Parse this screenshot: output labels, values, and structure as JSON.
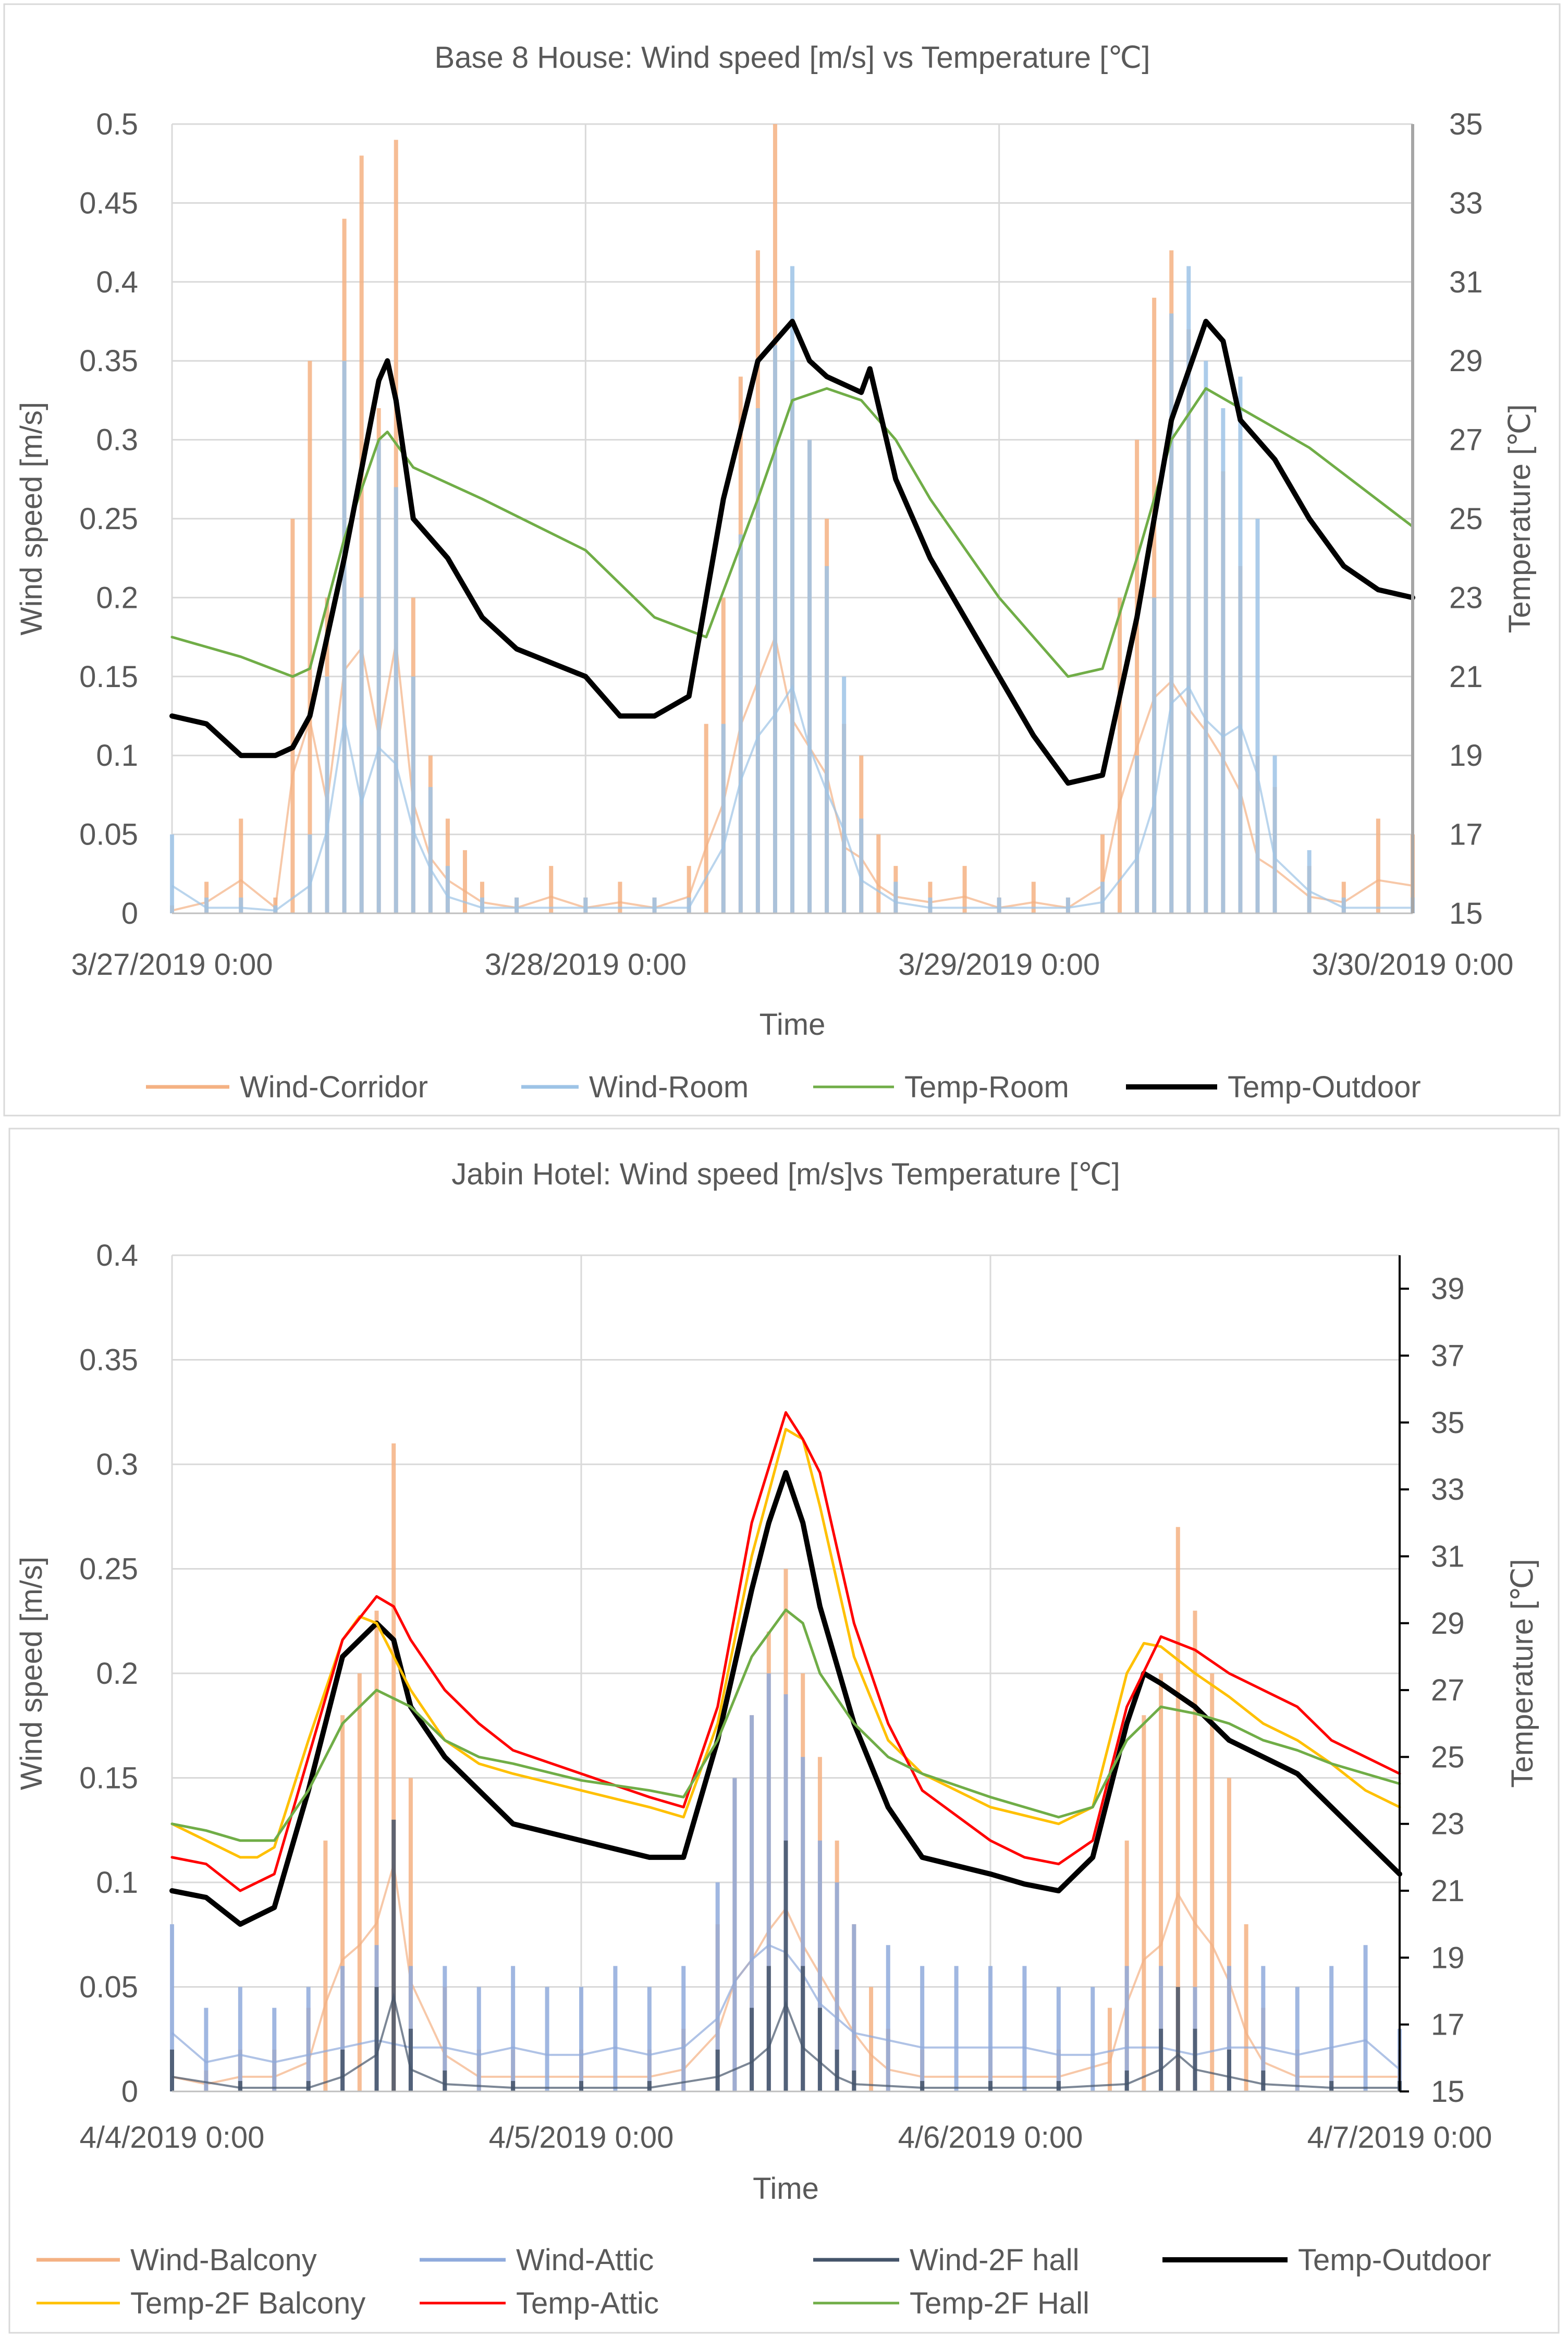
{
  "chart_data": [
    {
      "type": "line",
      "title": "Base 8 House: Wind speed [m/s] vs Temperature [℃]",
      "xlabel": "Time",
      "ylabel": "Wind speed [m/s]",
      "y2label": "Temperature [℃]",
      "xlim": [
        0,
        72
      ],
      "ylim": [
        0,
        0.5
      ],
      "y2lim": [
        15,
        35
      ],
      "xticks": [
        0,
        24,
        48,
        72
      ],
      "xtick_labels": [
        "3/27/2019 0:00",
        "3/28/2019 0:00",
        "3/29/2019 0:00",
        "3/30/2019 0:00"
      ],
      "yticks": [
        0,
        0.05,
        0.1,
        0.15,
        0.2,
        0.25,
        0.3,
        0.35,
        0.4,
        0.45,
        0.5
      ],
      "ytick_labels": [
        "0",
        "0.05",
        "0.1",
        "0.15",
        "0.2",
        "0.25",
        "0.3",
        "0.35",
        "0.4",
        "0.45",
        "0.5"
      ],
      "y2ticks": [
        15,
        17,
        19,
        21,
        23,
        25,
        27,
        29,
        31,
        33,
        35
      ],
      "y2tick_labels": [
        "15",
        "17",
        "19",
        "21",
        "23",
        "25",
        "27",
        "29",
        "31",
        "33",
        "35"
      ],
      "grid": true,
      "legend_position": "bottom",
      "series": [
        {
          "name": "Wind-Corridor",
          "axis": "left",
          "kind": "spikes",
          "color": "#f4b183",
          "width": 4,
          "x": [
            0,
            2,
            4,
            6,
            7,
            8,
            9,
            10,
            11,
            12,
            13,
            14,
            15,
            16,
            17,
            18,
            20,
            22,
            24,
            26,
            28,
            30,
            31,
            32,
            33,
            34,
            35,
            36,
            37,
            38,
            39,
            40,
            41,
            42,
            44,
            46,
            48,
            50,
            52,
            54,
            55,
            56,
            57,
            58,
            59,
            60,
            61,
            62,
            63,
            64,
            66,
            68,
            70,
            72
          ],
          "y": [
            0.005,
            0.02,
            0.06,
            0.01,
            0.25,
            0.35,
            0.2,
            0.44,
            0.48,
            0.32,
            0.49,
            0.2,
            0.1,
            0.06,
            0.04,
            0.02,
            0.01,
            0.03,
            0.01,
            0.02,
            0.01,
            0.03,
            0.12,
            0.2,
            0.34,
            0.42,
            0.5,
            0.35,
            0.3,
            0.25,
            0.12,
            0.1,
            0.05,
            0.03,
            0.02,
            0.03,
            0.01,
            0.02,
            0.01,
            0.05,
            0.2,
            0.3,
            0.39,
            0.42,
            0.37,
            0.33,
            0.28,
            0.22,
            0.1,
            0.08,
            0.03,
            0.02,
            0.06,
            0.05
          ]
        },
        {
          "name": "Wind-Room",
          "axis": "left",
          "kind": "spikes",
          "color": "#9dc3e6",
          "width": 4,
          "x": [
            0,
            2,
            4,
            6,
            8,
            9,
            10,
            11,
            12,
            13,
            14,
            15,
            16,
            18,
            20,
            24,
            28,
            30,
            32,
            33,
            34,
            35,
            36,
            37,
            38,
            39,
            40,
            42,
            44,
            48,
            52,
            54,
            56,
            57,
            58,
            59,
            60,
            61,
            62,
            63,
            64,
            66,
            68,
            72
          ],
          "y": [
            0.05,
            0.01,
            0.01,
            0.005,
            0.05,
            0.15,
            0.35,
            0.2,
            0.3,
            0.27,
            0.15,
            0.08,
            0.03,
            0.01,
            0.01,
            0.01,
            0.01,
            0.01,
            0.12,
            0.24,
            0.32,
            0.36,
            0.41,
            0.3,
            0.22,
            0.15,
            0.06,
            0.02,
            0.01,
            0.01,
            0.01,
            0.02,
            0.1,
            0.2,
            0.38,
            0.41,
            0.35,
            0.32,
            0.34,
            0.25,
            0.1,
            0.04,
            0.01,
            0.01
          ]
        },
        {
          "name": "Temp-Room",
          "axis": "right",
          "kind": "line",
          "color": "#70ad47",
          "width": 5,
          "x": [
            0,
            4,
            7,
            8,
            10,
            12,
            12.5,
            14,
            18,
            24,
            28,
            31,
            34,
            36,
            38,
            40,
            42,
            44,
            48,
            52,
            54,
            56,
            58,
            60,
            62,
            66,
            72
          ],
          "y": [
            22.0,
            21.5,
            21.0,
            21.2,
            24.5,
            27.0,
            27.2,
            26.3,
            25.5,
            24.2,
            22.5,
            22.0,
            25.5,
            28.0,
            28.3,
            28.0,
            27.0,
            25.5,
            23.0,
            21.0,
            21.2,
            24.0,
            27.0,
            28.3,
            27.8,
            26.8,
            24.8
          ]
        },
        {
          "name": "Temp-Outdoor",
          "axis": "right",
          "kind": "line",
          "color": "#000000",
          "width": 10,
          "x": [
            0,
            2,
            4,
            6,
            7,
            8,
            10,
            12,
            12.5,
            13,
            14,
            16,
            18,
            20,
            24,
            26,
            28,
            30,
            32,
            34,
            36,
            37,
            38,
            40,
            40.5,
            42,
            44,
            48,
            50,
            52,
            54,
            56,
            58,
            60,
            61,
            62,
            64,
            66,
            68,
            70,
            72
          ],
          "y": [
            20.0,
            19.8,
            19.0,
            19.0,
            19.2,
            20.0,
            24.0,
            28.5,
            29.0,
            28.0,
            25.0,
            24.0,
            22.5,
            21.7,
            21.0,
            20.0,
            20.0,
            20.5,
            25.5,
            29.0,
            30.0,
            29.0,
            28.6,
            28.2,
            28.8,
            26.0,
            24.0,
            21.0,
            19.5,
            18.3,
            18.5,
            22.5,
            27.5,
            30.0,
            29.5,
            27.5,
            26.5,
            25.0,
            23.8,
            23.2,
            23.0
          ]
        }
      ]
    },
    {
      "type": "line",
      "title": "Jabin Hotel: Wind speed [m/s]vs Temperature [℃]",
      "xlabel": "Time",
      "ylabel": "Wind speed [m/s]",
      "y2label": "Temperature [℃]",
      "xlim": [
        0,
        72
      ],
      "ylim": [
        0,
        0.4
      ],
      "y2lim": [
        15,
        40
      ],
      "xticks": [
        0,
        24,
        48,
        72
      ],
      "xtick_labels": [
        "4/4/2019 0:00",
        "4/5/2019 0:00",
        "4/6/2019 0:00",
        "4/7/2019 0:00"
      ],
      "yticks": [
        0,
        0.05,
        0.1,
        0.15,
        0.2,
        0.25,
        0.3,
        0.35,
        0.4
      ],
      "ytick_labels": [
        "0",
        "0.05",
        "0.1",
        "0.15",
        "0.2",
        "0.25",
        "0.3",
        "0.35",
        "0.4"
      ],
      "y2ticks": [
        15,
        17,
        19,
        21,
        23,
        25,
        27,
        29,
        31,
        33,
        35,
        37,
        39
      ],
      "y2tick_labels": [
        "15",
        "17",
        "19",
        "21",
        "23",
        "25",
        "27",
        "29",
        "31",
        "33",
        "35",
        "37",
        "39"
      ],
      "grid": true,
      "legend_position": "bottom",
      "series": [
        {
          "name": "Wind-Balcony",
          "axis": "left",
          "kind": "spikes",
          "color": "#f4b183",
          "width": 4,
          "x": [
            0,
            2,
            4,
            6,
            8,
            9,
            10,
            11,
            12,
            13,
            14,
            16,
            18,
            20,
            24,
            28,
            30,
            32,
            33,
            34,
            35,
            36,
            37,
            38,
            39,
            40,
            41,
            42,
            44,
            48,
            52,
            55,
            56,
            57,
            58,
            59,
            60,
            61,
            62,
            63,
            64,
            66,
            68,
            72
          ],
          "y": [
            0.02,
            0.01,
            0.02,
            0.02,
            0.04,
            0.12,
            0.18,
            0.2,
            0.23,
            0.31,
            0.15,
            0.05,
            0.02,
            0.02,
            0.02,
            0.02,
            0.03,
            0.08,
            0.15,
            0.18,
            0.22,
            0.25,
            0.2,
            0.16,
            0.12,
            0.08,
            0.05,
            0.03,
            0.02,
            0.02,
            0.02,
            0.04,
            0.12,
            0.18,
            0.2,
            0.27,
            0.23,
            0.2,
            0.15,
            0.08,
            0.04,
            0.02,
            0.02,
            0.02
          ]
        },
        {
          "name": "Wind-Attic",
          "axis": "left",
          "kind": "spikes",
          "color": "#8faadc",
          "width": 4,
          "x": [
            0,
            2,
            4,
            6,
            8,
            10,
            12,
            14,
            16,
            18,
            20,
            22,
            24,
            26,
            28,
            30,
            32,
            33,
            34,
            35,
            36,
            37,
            38,
            39,
            40,
            42,
            44,
            46,
            48,
            50,
            52,
            54,
            56,
            58,
            60,
            62,
            64,
            66,
            68,
            70,
            72
          ],
          "y": [
            0.08,
            0.04,
            0.05,
            0.04,
            0.05,
            0.06,
            0.07,
            0.06,
            0.06,
            0.05,
            0.06,
            0.05,
            0.05,
            0.06,
            0.05,
            0.06,
            0.1,
            0.15,
            0.18,
            0.2,
            0.19,
            0.16,
            0.12,
            0.1,
            0.08,
            0.07,
            0.06,
            0.06,
            0.06,
            0.06,
            0.05,
            0.05,
            0.06,
            0.06,
            0.05,
            0.06,
            0.06,
            0.05,
            0.06,
            0.07,
            0.03
          ]
        },
        {
          "name": "Wind-2F hall",
          "axis": "left",
          "kind": "spikes",
          "color": "#44546a",
          "width": 4,
          "x": [
            0,
            4,
            8,
            10,
            12,
            13,
            14,
            16,
            20,
            24,
            28,
            32,
            34,
            35,
            36,
            37,
            38,
            39,
            40,
            44,
            48,
            52,
            56,
            58,
            59,
            60,
            62,
            64,
            68,
            72
          ],
          "y": [
            0.02,
            0.005,
            0.005,
            0.02,
            0.05,
            0.13,
            0.03,
            0.01,
            0.005,
            0.005,
            0.005,
            0.02,
            0.04,
            0.06,
            0.12,
            0.06,
            0.04,
            0.02,
            0.01,
            0.005,
            0.005,
            0.005,
            0.01,
            0.03,
            0.05,
            0.03,
            0.02,
            0.01,
            0.005,
            0.005
          ]
        },
        {
          "name": "Temp-Outdoor",
          "axis": "right",
          "kind": "line",
          "color": "#000000",
          "width": 10,
          "x": [
            0,
            2,
            4,
            6,
            8,
            10,
            12,
            13,
            14,
            16,
            18,
            20,
            24,
            28,
            30,
            32,
            34,
            35,
            36,
            37,
            38,
            40,
            42,
            44,
            48,
            50,
            52,
            54,
            56,
            57,
            58,
            60,
            62,
            64,
            66,
            68,
            70,
            72
          ],
          "y": [
            21.0,
            20.8,
            20.0,
            20.5,
            24.0,
            28.0,
            29.0,
            28.5,
            26.5,
            25.0,
            24.0,
            23.0,
            22.5,
            22.0,
            22.0,
            25.5,
            30.0,
            32.0,
            33.5,
            32.0,
            29.5,
            26.0,
            23.5,
            22.0,
            21.5,
            21.2,
            21.0,
            22.0,
            26.0,
            27.5,
            27.2,
            26.5,
            25.5,
            25.0,
            24.5,
            23.5,
            22.5,
            21.5
          ]
        },
        {
          "name": "Temp-2F Balcony",
          "axis": "right",
          "kind": "line",
          "color": "#ffc000",
          "width": 5,
          "x": [
            0,
            2,
            4,
            5,
            6,
            8,
            10,
            11,
            12,
            13,
            14,
            16,
            18,
            20,
            24,
            28,
            30,
            32,
            34,
            36,
            37,
            38,
            40,
            42,
            44,
            48,
            52,
            54,
            56,
            57,
            58,
            60,
            62,
            64,
            66,
            68,
            70,
            72
          ],
          "y": [
            23.0,
            22.5,
            22.0,
            22.0,
            22.3,
            25.5,
            28.5,
            29.2,
            29.0,
            28.0,
            27.0,
            25.5,
            24.8,
            24.5,
            24.0,
            23.5,
            23.2,
            26.0,
            31.0,
            34.8,
            34.5,
            32.5,
            28.0,
            25.5,
            24.5,
            23.5,
            23.0,
            23.5,
            27.5,
            28.4,
            28.3,
            27.5,
            26.8,
            26.0,
            25.5,
            24.8,
            24.0,
            23.5
          ]
        },
        {
          "name": "Temp-Attic",
          "axis": "right",
          "kind": "line",
          "color": "#ff0000",
          "width": 5,
          "x": [
            0,
            2,
            4,
            6,
            8,
            10,
            12,
            13,
            14,
            16,
            18,
            20,
            24,
            28,
            30,
            32,
            34,
            36,
            37,
            38,
            40,
            42,
            44,
            48,
            50,
            52,
            54,
            56,
            58,
            60,
            62,
            64,
            66,
            68,
            70,
            72
          ],
          "y": [
            22.0,
            21.8,
            21.0,
            21.5,
            25.0,
            28.5,
            29.8,
            29.5,
            28.5,
            27.0,
            26.0,
            25.2,
            24.5,
            23.8,
            23.5,
            26.5,
            32.0,
            35.3,
            34.5,
            33.5,
            29.0,
            26.0,
            24.0,
            22.5,
            22.0,
            21.8,
            22.5,
            26.5,
            28.6,
            28.2,
            27.5,
            27.0,
            26.5,
            25.5,
            25.0,
            24.5
          ]
        },
        {
          "name": "Temp-2F Hall",
          "axis": "right",
          "kind": "line",
          "color": "#70ad47",
          "width": 5,
          "x": [
            0,
            2,
            4,
            6,
            8,
            10,
            12,
            14,
            16,
            18,
            20,
            24,
            28,
            30,
            32,
            34,
            36,
            37,
            38,
            40,
            42,
            44,
            48,
            52,
            54,
            56,
            58,
            60,
            62,
            64,
            66,
            68,
            70,
            72
          ],
          "y": [
            23.0,
            22.8,
            22.5,
            22.5,
            24.0,
            26.0,
            27.0,
            26.5,
            25.5,
            25.0,
            24.8,
            24.3,
            24.0,
            23.8,
            25.5,
            28.0,
            29.4,
            29.0,
            27.5,
            26.0,
            25.0,
            24.5,
            23.8,
            23.2,
            23.5,
            25.5,
            26.5,
            26.3,
            26.0,
            25.5,
            25.2,
            24.8,
            24.5,
            24.2
          ]
        }
      ]
    }
  ]
}
